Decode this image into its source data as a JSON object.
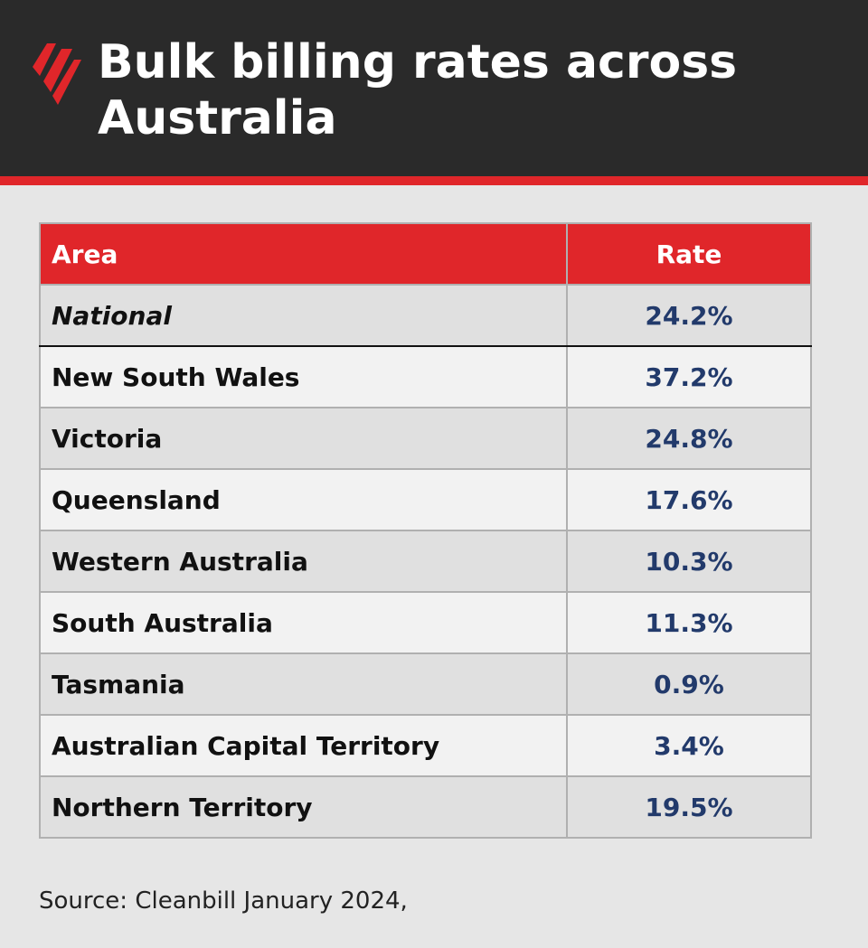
{
  "header": {
    "title": "Bulk billing rates across Australia"
  },
  "table": {
    "columns": [
      "Area",
      "Rate"
    ],
    "rows": [
      [
        "National",
        "24.2%"
      ],
      [
        "New South Wales",
        "37.2%"
      ],
      [
        "Victoria",
        "24.8%"
      ],
      [
        "Queensland",
        "17.6%"
      ],
      [
        "Western Australia",
        "10.3%"
      ],
      [
        "South Australia",
        "11.3%"
      ],
      [
        "Tasmania",
        "0.9%"
      ],
      [
        "Australian Capital Territory",
        "3.4%"
      ],
      [
        "Northern Territory",
        "19.5%"
      ]
    ]
  },
  "footer": {
    "source": "Source: Cleanbill January 2024,"
  }
}
